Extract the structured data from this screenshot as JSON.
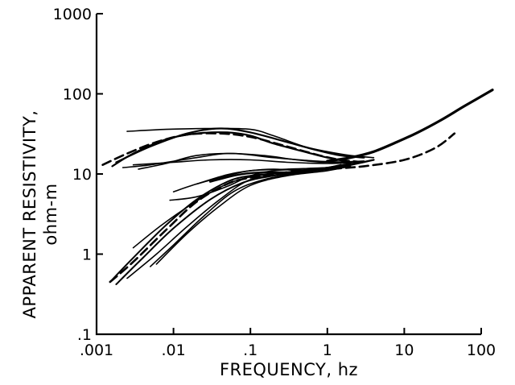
{
  "chart_data": {
    "type": "line",
    "title": "",
    "xlabel": "FREQUENCY, hz",
    "ylabel_line1": "APPARENT RESISTIVITY,",
    "ylabel_line2": "ohm-m",
    "x_scale": "log",
    "y_scale": "log",
    "xlim": [
      0.001,
      100
    ],
    "ylim": [
      0.1,
      1000
    ],
    "x_tick_labels": [
      ".001",
      ".01",
      ".1",
      "1",
      "10",
      "100"
    ],
    "y_tick_labels": [
      ".1",
      "1",
      "10",
      "100",
      "1000"
    ],
    "grid": false,
    "legend": null,
    "series": [
      {
        "style": "solid",
        "width": 2.2,
        "x": [
          0.0016,
          0.003,
          0.008,
          0.02,
          0.05,
          0.1,
          0.2,
          0.5,
          1,
          2
        ],
        "y": [
          12.5,
          18,
          27,
          32,
          33,
          30,
          24,
          19,
          16,
          14
        ]
      },
      {
        "style": "solid",
        "width": 2.2,
        "x": [
          0.0018,
          0.005,
          0.015,
          0.04,
          0.1,
          0.3,
          0.7,
          1.5,
          3
        ],
        "y": [
          14,
          22,
          32,
          37,
          33,
          25,
          20,
          17,
          16
        ]
      },
      {
        "style": "solid",
        "width": 1.6,
        "x": [
          0.0025,
          0.008,
          0.03,
          0.1,
          0.2,
          0.5,
          1,
          2,
          4
        ],
        "y": [
          34,
          36,
          37,
          36,
          30,
          22,
          19,
          17,
          16
        ]
      },
      {
        "style": "solid",
        "width": 1.6,
        "x": [
          0.0022,
          0.005,
          0.02,
          0.05,
          0.15,
          0.4,
          1,
          3
        ],
        "y": [
          12,
          13,
          16,
          18,
          17,
          15,
          14,
          14.5
        ]
      },
      {
        "style": "solid",
        "width": 1.6,
        "x": [
          0.003,
          0.01,
          0.03,
          0.1,
          0.3,
          1,
          3
        ],
        "y": [
          13,
          14,
          15,
          15,
          14,
          13.5,
          14
        ]
      },
      {
        "style": "solid",
        "width": 1.6,
        "x": [
          0.0035,
          0.008,
          0.02,
          0.06,
          0.2,
          0.7,
          2
        ],
        "y": [
          11.5,
          13.5,
          17,
          18,
          16,
          14.5,
          14
        ]
      },
      {
        "style": "dashed",
        "width": 2.6,
        "x": [
          0.0012,
          0.0025,
          0.006,
          0.015,
          0.04,
          0.1,
          0.3,
          0.8,
          1.5,
          3
        ],
        "y": [
          13,
          18,
          25,
          31,
          32,
          29,
          22,
          17,
          15,
          14
        ]
      },
      {
        "style": "solid",
        "width": 3.2,
        "x": [
          1,
          2,
          4,
          8,
          15,
          30,
          60,
          140
        ],
        "y": [
          14.5,
          16,
          19,
          25,
          33,
          47,
          70,
          112
        ]
      },
      {
        "style": "solid",
        "width": 2.0,
        "x": [
          0.0015,
          0.003,
          0.008,
          0.02,
          0.05,
          0.1,
          0.3,
          1,
          2
        ],
        "y": [
          0.45,
          0.9,
          2.3,
          4.8,
          8,
          9.5,
          10.5,
          12,
          13.5
        ]
      },
      {
        "style": "solid",
        "width": 2.0,
        "x": [
          0.0018,
          0.004,
          0.01,
          0.03,
          0.08,
          0.2,
          0.6,
          1.5
        ],
        "y": [
          0.42,
          0.9,
          2.1,
          4.8,
          7.8,
          9.5,
          10.8,
          13
        ]
      },
      {
        "style": "solid",
        "width": 1.6,
        "x": [
          0.0025,
          0.006,
          0.015,
          0.04,
          0.1,
          0.3,
          1,
          2
        ],
        "y": [
          0.5,
          1.0,
          2.2,
          4.8,
          8.5,
          10,
          11.5,
          13
        ]
      },
      {
        "style": "solid",
        "width": 1.6,
        "x": [
          0.003,
          0.007,
          0.02,
          0.05,
          0.12,
          0.4,
          1,
          2
        ],
        "y": [
          1.2,
          2.3,
          4.6,
          7.5,
          9.5,
          10.5,
          11.5,
          13
        ]
      },
      {
        "style": "solid",
        "width": 1.6,
        "x": [
          0.005,
          0.01,
          0.025,
          0.06,
          0.15,
          0.5,
          1.5
        ],
        "y": [
          0.7,
          1.3,
          3.0,
          6.0,
          8.5,
          10.5,
          12.5
        ]
      },
      {
        "style": "solid",
        "width": 1.6,
        "x": [
          0.006,
          0.015,
          0.04,
          0.1,
          0.3,
          1,
          2
        ],
        "y": [
          0.75,
          1.8,
          4.0,
          7.2,
          9.5,
          11,
          12.5
        ]
      },
      {
        "style": "solid",
        "width": 1.6,
        "x": [
          0.009,
          0.02,
          0.05,
          0.1,
          0.2,
          0.5,
          1,
          2
        ],
        "y": [
          4.7,
          5.2,
          7.0,
          9.5,
          11,
          11.5,
          12,
          13
        ]
      },
      {
        "style": "solid",
        "width": 1.6,
        "x": [
          0.01,
          0.02,
          0.05,
          0.1,
          0.3,
          1,
          2
        ],
        "y": [
          6.0,
          7.5,
          9.5,
          11,
          11.5,
          12,
          13
        ]
      },
      {
        "style": "solid",
        "width": 1.6,
        "x": [
          0.02,
          0.05,
          0.1,
          0.2,
          0.5,
          1,
          2,
          4
        ],
        "y": [
          7.5,
          9.8,
          11,
          11.5,
          11,
          11.5,
          13,
          15
        ]
      },
      {
        "style": "solid",
        "width": 2.4,
        "x": [
          0.03,
          0.07,
          0.15,
          0.4,
          1,
          2,
          4
        ],
        "y": [
          8.0,
          9.8,
          10.5,
          10.5,
          11.5,
          13,
          15
        ]
      },
      {
        "style": "dashed",
        "width": 2.6,
        "x": [
          0.0015,
          0.003,
          0.008,
          0.02,
          0.05,
          0.1,
          0.3,
          1,
          3,
          10,
          25,
          45
        ],
        "y": [
          0.45,
          0.8,
          2.0,
          4.5,
          7.5,
          9,
          10.5,
          11.5,
          12.5,
          15,
          21,
          32
        ]
      }
    ]
  }
}
